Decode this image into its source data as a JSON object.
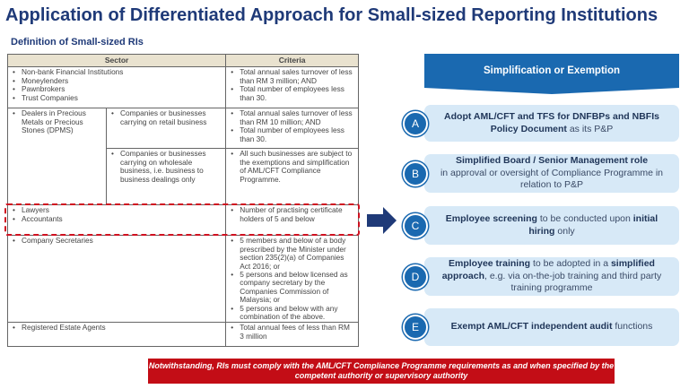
{
  "title": "Application of Differentiated Approach for Small-sized Reporting Institutions",
  "subtitle": "Definition of Small-sized RIs",
  "table": {
    "headers": [
      "Sector",
      "Criteria"
    ],
    "rows": [
      {
        "sector": [
          "Non-bank Financial Institutions",
          "Moneylenders",
          "Pawnbrokers",
          "Trust Companies"
        ],
        "criteria": [
          "Total annual sales turnover of less than RM 3 million; AND",
          "Total number of employees less than 30."
        ]
      },
      {
        "sector": [
          "Dealers in Precious Metals or Precious Stones (DPMS)"
        ],
        "sub": [
          "Companies or businesses carrying on retail business"
        ],
        "criteria": [
          "Total annual sales turnover of less than RM 10 million; AND",
          "Total number of employees less than 30."
        ]
      },
      {
        "sub": [
          "Companies or businesses carrying on wholesale business, i.e. business to business dealings only"
        ],
        "criteria": [
          "All such businesses are subject to the exemptions and simplification of AML/CFT Compliance Programme."
        ]
      },
      {
        "sector": [
          "Lawyers",
          "Accountants"
        ],
        "criteria": [
          "Number of practising certificate holders of 5 and below"
        ]
      },
      {
        "sector": [
          "Company Secretaries"
        ],
        "criteria": [
          "5 members and below of a body prescribed by the Minister under section 235(2)(a) of Companies Act 2016; or",
          "5 persons and below licensed as company secretary by the Companies Commission of Malaysia; or",
          "5 persons and below with any combination of the above."
        ]
      },
      {
        "sector": [
          "Registered Estate Agents"
        ],
        "criteria": [
          "Total annual fees of less than RM 3 million"
        ]
      }
    ]
  },
  "right": {
    "header": "Simplification or Exemption",
    "items": [
      {
        "letter": "A",
        "segs": [
          "Adopt AML/CFT and TFS for DNFBPs and NBFIs Policy Document",
          " as its P&P"
        ]
      },
      {
        "letter": "B",
        "segs": [
          "Simplified Board / Senior Management role",
          "in approval or oversight of Compliance Programme in relation to P&P"
        ]
      },
      {
        "letter": "C",
        "segs": [
          "Employee screening",
          " to be conducted upon ",
          "initial hiring",
          " only"
        ]
      },
      {
        "letter": "D",
        "segs": [
          "Employee training",
          " to be adopted in a ",
          "simplified approach",
          ", e.g. via on-the-job training and third party training programme"
        ]
      },
      {
        "letter": "E",
        "segs": [
          "Exempt AML/CFT independent audit",
          " functions"
        ]
      }
    ]
  },
  "note": "Notwithstanding, RIs must comply with the AML/CFT Compliance Programme requirements as and when specified by the competent authority or supervisory authority",
  "colors": {
    "title": "#1f3a78",
    "banner": "#1a69b0",
    "box": "#d7e9f7",
    "highlight": "#d01020",
    "note": "#c30d16"
  }
}
